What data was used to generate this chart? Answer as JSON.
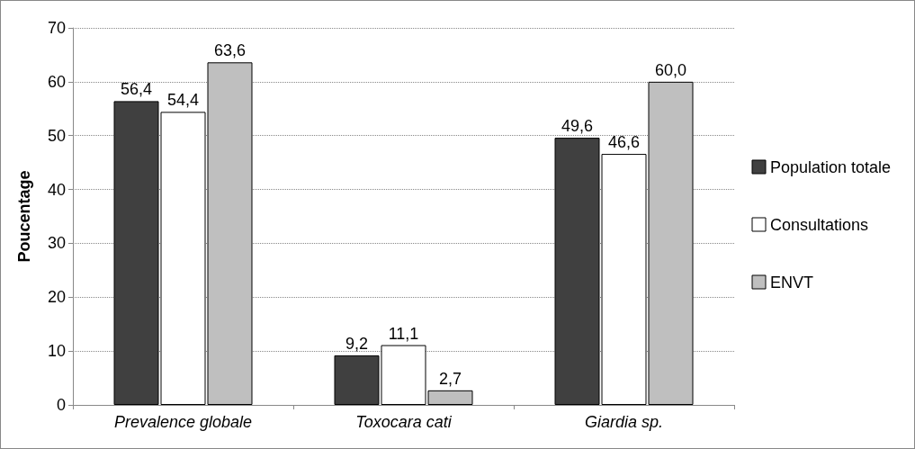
{
  "chart_data": {
    "type": "bar",
    "ylabel": "Poucentage",
    "categories": [
      "Prevalence globale",
      "Toxocara cati",
      "Giardia sp."
    ],
    "series": [
      {
        "name": "Population totale",
        "color": "#404040",
        "values": [
          56.4,
          9.2,
          49.6
        ],
        "value_labels": [
          "56,4",
          "9,2",
          "49,6"
        ]
      },
      {
        "name": "Consultations",
        "color": "#ffffff",
        "values": [
          54.4,
          11.1,
          46.6
        ],
        "value_labels": [
          "54,4",
          "11,1",
          "46,6"
        ]
      },
      {
        "name": "ENVT",
        "color": "#bfbfbf",
        "values": [
          63.6,
          2.7,
          60.0
        ],
        "value_labels": [
          "63,6",
          "2,7",
          "60,0"
        ]
      }
    ],
    "ylim": [
      0,
      70
    ],
    "yticks": [
      0,
      10,
      20,
      30,
      40,
      50,
      60,
      70
    ],
    "grid": "y",
    "legend": "right"
  }
}
